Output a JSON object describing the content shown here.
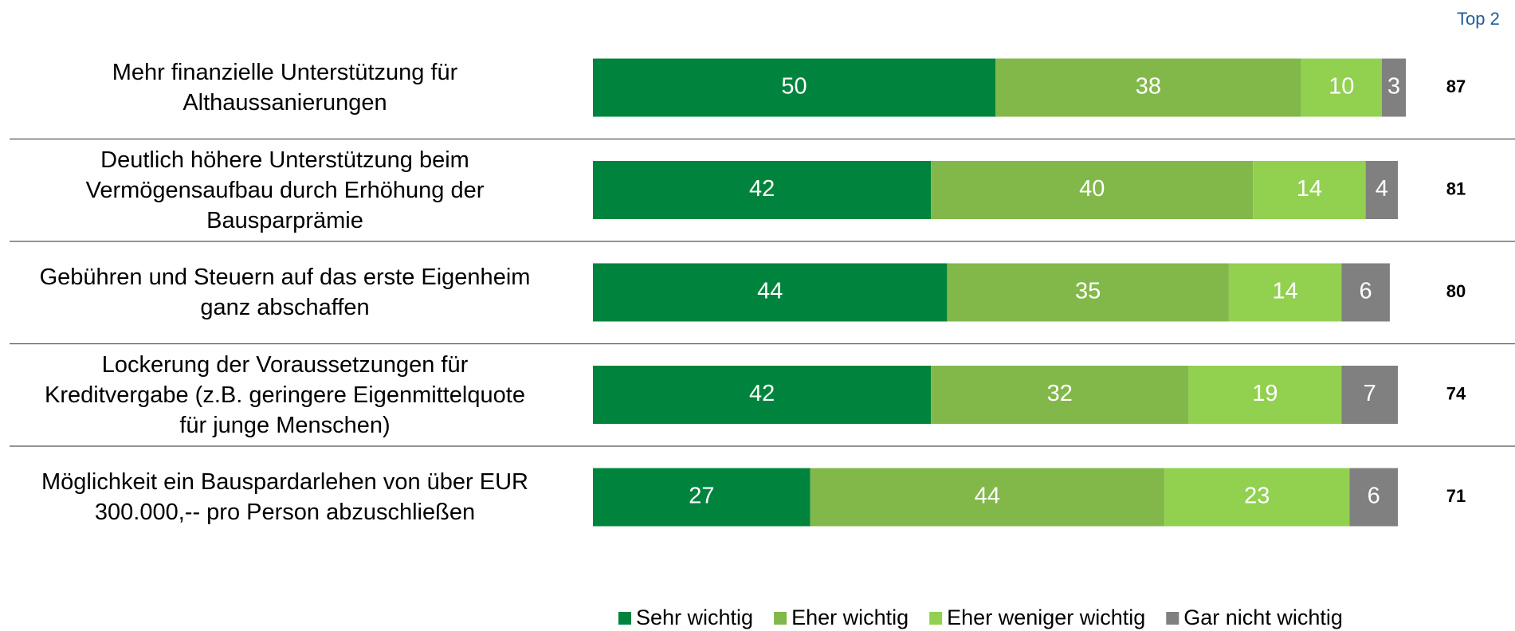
{
  "chart_data": {
    "type": "stacked_barh",
    "categories": [
      "Mehr finanzielle Unterstützung für\nAlthaussanierungen",
      "Deutlich höhere Unterstützung beim\nVermögensaufbau durch Erhöhung der\nBausparprämie",
      "Gebühren und Steuern auf das erste Eigenheim\nganz abschaffen",
      "Lockerung der Voraussetzungen für\nKreditvergabe (z.B. geringere Eigenmittelquote\nfür junge Menschen)",
      "Möglichkeit ein Bauspardarlehen von über EUR\n300.000,-- pro Person abzuschließen"
    ],
    "series": [
      {
        "name": "Sehr wichtig",
        "color": "#00843d",
        "values": [
          50,
          42,
          44,
          42,
          27
        ]
      },
      {
        "name": "Eher wichtig",
        "color": "#82b84a",
        "values": [
          38,
          40,
          35,
          32,
          44
        ]
      },
      {
        "name": "Eher weniger wichtig",
        "color": "#92d050",
        "values": [
          10,
          14,
          14,
          19,
          23
        ]
      },
      {
        "name": "Gar nicht wichtig",
        "color": "#808080",
        "values": [
          3,
          4,
          6,
          7,
          6
        ]
      }
    ],
    "xlim": [
      0,
      100
    ],
    "top2": {
      "label": "Top 2",
      "color": "#1f5c99",
      "values": [
        87,
        81,
        80,
        74,
        71
      ]
    }
  }
}
